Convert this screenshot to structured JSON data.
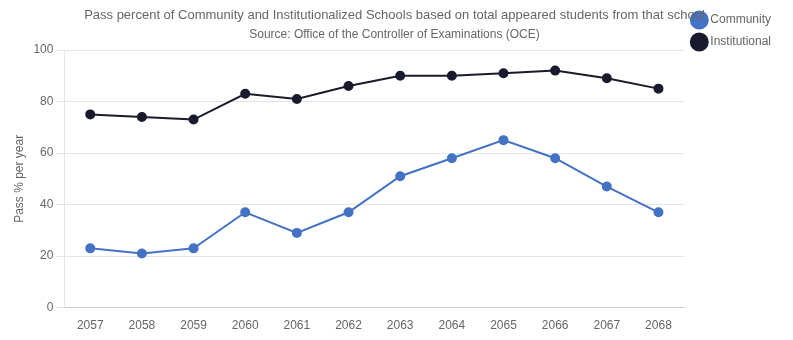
{
  "chart_data": {
    "type": "line",
    "title": "Pass percent of Community and Institutionalized Schools based on total appeared students from that school",
    "subtitle": "Source: Office of the Controller of Examinations (OCE)",
    "ylabel": "Pass % per year",
    "x": [
      2057,
      2058,
      2059,
      2060,
      2061,
      2062,
      2063,
      2064,
      2065,
      2066,
      2067,
      2068
    ],
    "series": [
      {
        "name": "Community",
        "color": "#4472C4",
        "marker": "circle",
        "values": [
          23,
          21,
          23,
          37,
          29,
          37,
          51,
          58,
          65,
          58,
          47,
          37
        ]
      },
      {
        "name": "Institutional",
        "color": "#1a1a2e",
        "marker": "circle",
        "values": [
          75,
          74,
          73,
          83,
          81,
          86,
          90,
          90,
          91,
          92,
          89,
          85
        ]
      }
    ],
    "xlim": [
      2056.5,
      2068.5
    ],
    "xticks": [
      2057,
      2058,
      2059,
      2060,
      2061,
      2062,
      2063,
      2064,
      2065,
      2066,
      2067,
      2068
    ],
    "ylim": [
      0,
      100
    ],
    "yticks": [
      0,
      20,
      40,
      60,
      80,
      100
    ],
    "grid": "y",
    "legend": "right"
  }
}
